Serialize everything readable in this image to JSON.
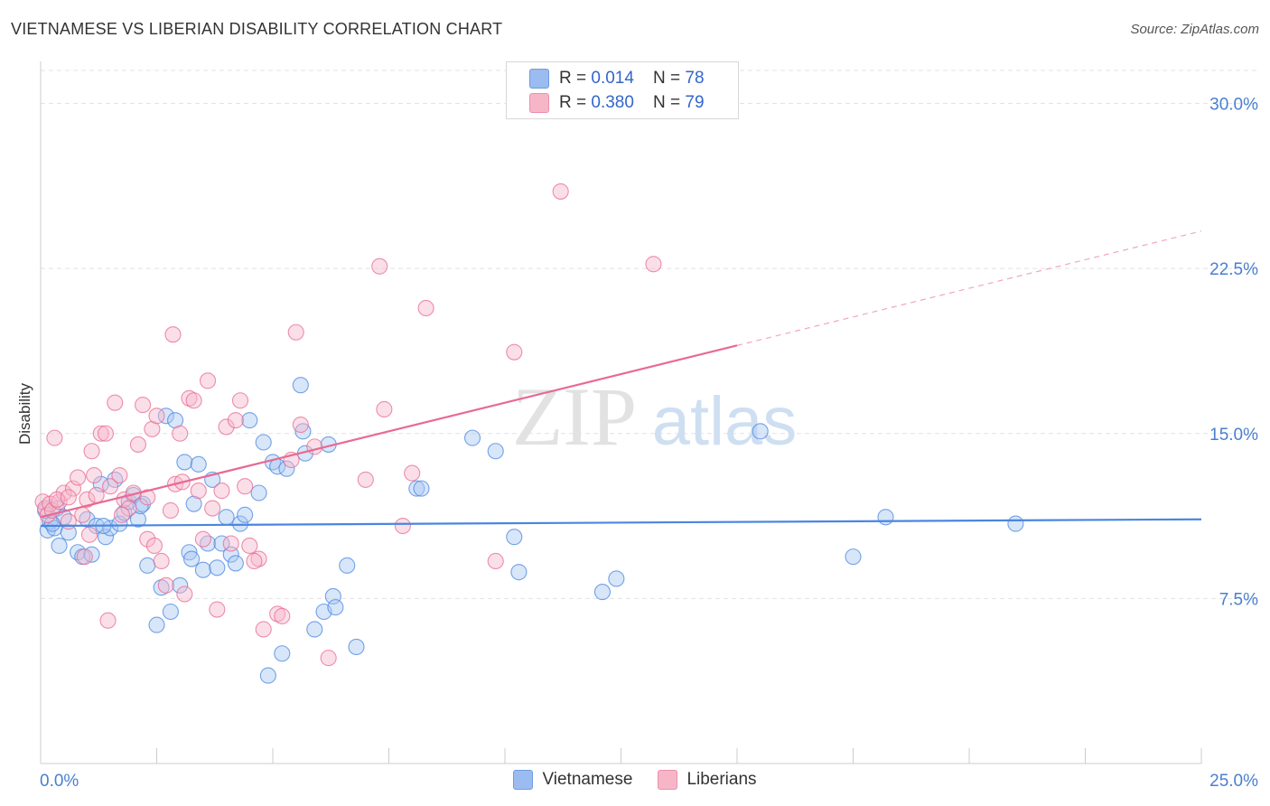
{
  "header": {
    "title": "VIETNAMESE VS LIBERIAN DISABILITY CORRELATION CHART",
    "source": "Source: ZipAtlas.com"
  },
  "watermark": {
    "zip": "ZIP",
    "atlas": "atlas"
  },
  "stats": [
    {
      "r_label": "R = ",
      "r_value": "0.014",
      "n_label": "N = ",
      "n_value": "78",
      "color": "#9bbcf0"
    },
    {
      "r_label": "R = ",
      "r_value": "0.380",
      "n_label": "N = ",
      "n_value": "79",
      "color": "#f7b6c8"
    }
  ],
  "legend": [
    {
      "label": "Vietnamese",
      "color": "#9bbcf0"
    },
    {
      "label": "Liberians",
      "color": "#f7b6c8"
    }
  ],
  "chart_data": {
    "type": "scatter",
    "title": "VIETNAMESE VS LIBERIAN DISABILITY CORRELATION CHART",
    "xlabel": "",
    "ylabel": "Disability",
    "xlim": [
      0,
      25
    ],
    "ylim": [
      0,
      31.5
    ],
    "x_tick_labels": [
      "0.0%",
      "25.0%"
    ],
    "y_ticks": [
      7.5,
      15.0,
      22.5,
      30.0
    ],
    "y_tick_labels": [
      "7.5%",
      "15.0%",
      "22.5%",
      "30.0%"
    ],
    "grid": "horizontal dashed",
    "legend_position": "bottom",
    "series": [
      {
        "name": "Vietnamese",
        "color": "#4a86e0",
        "fill": "#a9c7f2",
        "trend": {
          "x0": 0,
          "y0": 10.8,
          "x1": 25,
          "y1": 11.1,
          "dashed_from": null
        },
        "points": [
          [
            0.15,
            10.6
          ],
          [
            0.2,
            11.0
          ],
          [
            0.3,
            10.7
          ],
          [
            0.35,
            11.6
          ],
          [
            0.4,
            9.9
          ],
          [
            0.5,
            11.2
          ],
          [
            0.6,
            10.5
          ],
          [
            0.8,
            9.6
          ],
          [
            0.9,
            9.4
          ],
          [
            1.0,
            11.1
          ],
          [
            1.1,
            9.5
          ],
          [
            1.2,
            10.8
          ],
          [
            1.3,
            12.7
          ],
          [
            1.4,
            10.3
          ],
          [
            1.5,
            10.7
          ],
          [
            1.6,
            12.9
          ],
          [
            1.7,
            10.9
          ],
          [
            1.8,
            11.4
          ],
          [
            1.9,
            11.9
          ],
          [
            2.0,
            12.2
          ],
          [
            2.1,
            11.1
          ],
          [
            2.2,
            11.8
          ],
          [
            2.3,
            9.0
          ],
          [
            2.5,
            6.3
          ],
          [
            2.6,
            8.0
          ],
          [
            2.7,
            15.8
          ],
          [
            2.8,
            6.9
          ],
          [
            2.9,
            15.6
          ],
          [
            3.0,
            8.1
          ],
          [
            3.1,
            13.7
          ],
          [
            3.2,
            9.6
          ],
          [
            3.3,
            11.8
          ],
          [
            3.4,
            13.6
          ],
          [
            3.5,
            8.8
          ],
          [
            3.6,
            10.0
          ],
          [
            3.7,
            12.9
          ],
          [
            3.8,
            8.9
          ],
          [
            3.9,
            10.0
          ],
          [
            4.0,
            11.2
          ],
          [
            4.1,
            9.5
          ],
          [
            4.2,
            9.1
          ],
          [
            4.3,
            10.9
          ],
          [
            4.4,
            11.3
          ],
          [
            4.5,
            15.6
          ],
          [
            4.7,
            12.3
          ],
          [
            4.8,
            14.6
          ],
          [
            4.9,
            4.0
          ],
          [
            5.0,
            13.7
          ],
          [
            5.1,
            13.5
          ],
          [
            5.2,
            5.0
          ],
          [
            5.3,
            13.4
          ],
          [
            5.6,
            17.2
          ],
          [
            5.65,
            15.1
          ],
          [
            5.7,
            14.1
          ],
          [
            5.9,
            6.1
          ],
          [
            6.1,
            6.9
          ],
          [
            6.2,
            14.5
          ],
          [
            6.3,
            7.6
          ],
          [
            6.35,
            7.1
          ],
          [
            6.6,
            9.0
          ],
          [
            6.8,
            5.3
          ],
          [
            8.1,
            12.5
          ],
          [
            8.2,
            12.5
          ],
          [
            9.3,
            14.8
          ],
          [
            9.8,
            14.2
          ],
          [
            10.2,
            10.3
          ],
          [
            10.3,
            8.7
          ],
          [
            12.1,
            7.8
          ],
          [
            12.4,
            8.4
          ],
          [
            15.5,
            15.1
          ],
          [
            17.5,
            9.4
          ],
          [
            18.2,
            11.2
          ],
          [
            21.0,
            10.9
          ],
          [
            0.1,
            11.5
          ],
          [
            0.25,
            10.9
          ],
          [
            1.35,
            10.8
          ],
          [
            2.15,
            11.7
          ],
          [
            3.25,
            9.3
          ]
        ]
      },
      {
        "name": "Liberians",
        "color": "#e86a92",
        "fill": "#f6b9cc",
        "trend": {
          "x0": 0,
          "y0": 11.2,
          "x1": 15,
          "y1": 19.0,
          "dashed_from": 15,
          "x_end": 25,
          "y_end": 24.2
        },
        "points": [
          [
            0.05,
            11.9
          ],
          [
            0.1,
            11.6
          ],
          [
            0.15,
            11.3
          ],
          [
            0.2,
            11.8
          ],
          [
            0.25,
            11.5
          ],
          [
            0.3,
            14.8
          ],
          [
            0.4,
            11.9
          ],
          [
            0.5,
            12.3
          ],
          [
            0.6,
            11.0
          ],
          [
            0.7,
            12.5
          ],
          [
            0.8,
            13.0
          ],
          [
            0.9,
            11.3
          ],
          [
            1.0,
            12.0
          ],
          [
            1.1,
            14.2
          ],
          [
            1.15,
            13.1
          ],
          [
            1.2,
            12.2
          ],
          [
            1.3,
            15.0
          ],
          [
            1.4,
            15.0
          ],
          [
            1.5,
            12.6
          ],
          [
            1.6,
            16.4
          ],
          [
            1.7,
            13.1
          ],
          [
            1.8,
            12.0
          ],
          [
            1.9,
            11.6
          ],
          [
            2.0,
            12.3
          ],
          [
            2.1,
            14.5
          ],
          [
            2.2,
            16.3
          ],
          [
            2.3,
            10.2
          ],
          [
            2.4,
            15.2
          ],
          [
            2.5,
            15.8
          ],
          [
            2.6,
            9.2
          ],
          [
            2.7,
            8.1
          ],
          [
            2.8,
            11.5
          ],
          [
            2.85,
            19.5
          ],
          [
            2.9,
            12.7
          ],
          [
            3.0,
            15.0
          ],
          [
            3.1,
            7.7
          ],
          [
            3.2,
            16.6
          ],
          [
            3.3,
            16.5
          ],
          [
            3.5,
            10.2
          ],
          [
            3.6,
            17.4
          ],
          [
            3.7,
            11.6
          ],
          [
            3.8,
            7.0
          ],
          [
            3.9,
            12.4
          ],
          [
            4.0,
            15.3
          ],
          [
            4.1,
            10.0
          ],
          [
            4.2,
            15.6
          ],
          [
            4.3,
            16.5
          ],
          [
            4.4,
            12.6
          ],
          [
            4.5,
            9.9
          ],
          [
            4.7,
            9.3
          ],
          [
            4.8,
            6.1
          ],
          [
            5.1,
            6.8
          ],
          [
            5.2,
            6.7
          ],
          [
            5.4,
            13.8
          ],
          [
            5.5,
            19.6
          ],
          [
            5.6,
            15.4
          ],
          [
            5.9,
            14.4
          ],
          [
            6.2,
            4.8
          ],
          [
            7.0,
            12.9
          ],
          [
            7.4,
            16.1
          ],
          [
            7.8,
            10.8
          ],
          [
            8.0,
            13.2
          ],
          [
            8.3,
            20.7
          ],
          [
            10.2,
            18.7
          ],
          [
            11.2,
            26.0
          ],
          [
            13.2,
            22.7
          ],
          [
            7.3,
            22.6
          ],
          [
            1.45,
            6.5
          ],
          [
            0.35,
            12.0
          ],
          [
            1.05,
            10.4
          ],
          [
            1.75,
            11.3
          ],
          [
            2.45,
            9.9
          ],
          [
            3.05,
            12.8
          ],
          [
            0.95,
            9.4
          ],
          [
            2.3,
            12.1
          ],
          [
            4.6,
            9.2
          ],
          [
            9.8,
            9.2
          ],
          [
            3.4,
            12.4
          ],
          [
            0.6,
            12.1
          ]
        ]
      }
    ]
  }
}
